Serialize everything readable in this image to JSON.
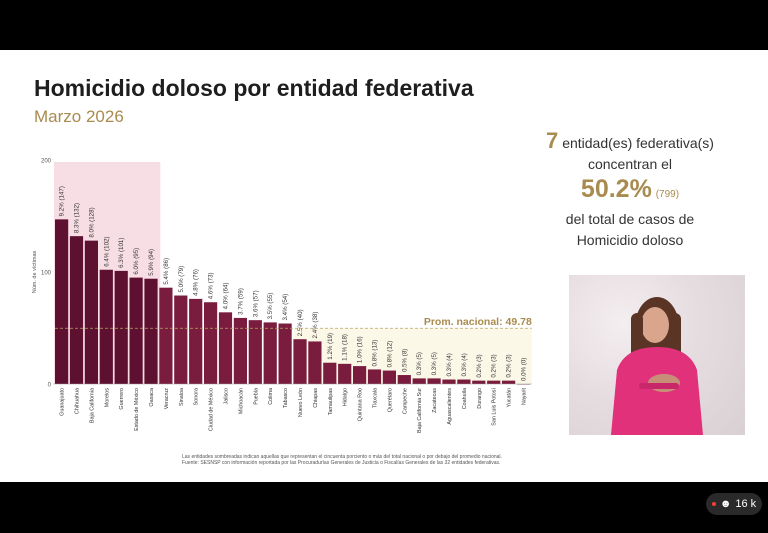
{
  "header": {
    "title": "Homicidio doloso por entidad federativa",
    "subtitle": "Marzo 2026"
  },
  "summary": {
    "count": "7",
    "line1": "entidad(es) federativa(s)",
    "line2": "concentran el",
    "percent": "50.2%",
    "cases": "(799)",
    "line3": "del total de casos de",
    "line4": "Homicidio doloso"
  },
  "chart_data": {
    "type": "bar",
    "ylabel": "Núm. de víctimas",
    "ylim": [
      0,
      200
    ],
    "yticks": [
      0,
      100,
      200
    ],
    "avg_label": "Prom. nacional: 49.78",
    "avg_value": 49.78,
    "highlight_count": 7,
    "colors": {
      "highlight": "#5e1030",
      "normal": "#7a1c3e",
      "highlight_band": "#f7dde4",
      "low_band": "#fbf8e8",
      "avg_line": "#b7a46a"
    },
    "categories": [
      "Guanajuato",
      "Chihuahua",
      "Baja California",
      "Morelos",
      "Guerrero",
      "Estado de México",
      "Oaxaca",
      "Veracruz",
      "Sinaloa",
      "Sonora",
      "Ciudad de México",
      "Jalisco",
      "Michoacán",
      "Puebla",
      "Colima",
      "Tabasco",
      "Nuevo León",
      "Chiapas",
      "Tamaulipas",
      "Hidalgo",
      "Quintana Roo",
      "Tlaxcala",
      "Querétaro",
      "Campeche",
      "Baja California Sur",
      "Zacatecas",
      "Aguascalientes",
      "Coahuila",
      "Durango",
      "San Luis Potosí",
      "Yucatán",
      "Nayarit"
    ],
    "values": [
      147,
      132,
      128,
      102,
      101,
      95,
      94,
      86,
      79,
      76,
      73,
      64,
      59,
      57,
      55,
      54,
      40,
      38,
      19,
      18,
      16,
      13,
      12,
      8,
      5,
      5,
      4,
      4,
      3,
      3,
      3,
      0
    ],
    "labels": [
      "9.2% (147)",
      "8.3% (132)",
      "8.0% (128)",
      "6.4% (102)",
      "6.3% (101)",
      "6.0% (95)",
      "5.9% (94)",
      "5.4% (86)",
      "5.0% (79)",
      "4.8% (76)",
      "4.6% (73)",
      "4.0% (64)",
      "3.7% (59)",
      "3.6% (57)",
      "3.5% (55)",
      "3.4% (54)",
      "2.5% (40)",
      "2.4% (38)",
      "1.2% (19)",
      "1.1% (18)",
      "1.0% (16)",
      "0.8% (13)",
      "0.8% (12)",
      "0.5% (8)",
      "0.3% (5)",
      "0.3% (5)",
      "0.3% (4)",
      "0.3% (4)",
      "0.2% (3)",
      "0.2% (3)",
      "0.2% (3)",
      "0.0% (0)"
    ]
  },
  "footnote": {
    "line1": "Las entidades sombreadas indican aquellas que representan el cincuenta porciento o más del total nacional o por debajo del promedio nacional.",
    "line2": "Fuente: SESNSP con información reportada por las Procuradurías Generales de Justicia o Fiscalías Generales de las 32 entidades federativas."
  },
  "stream": {
    "viewers": "16 k"
  }
}
